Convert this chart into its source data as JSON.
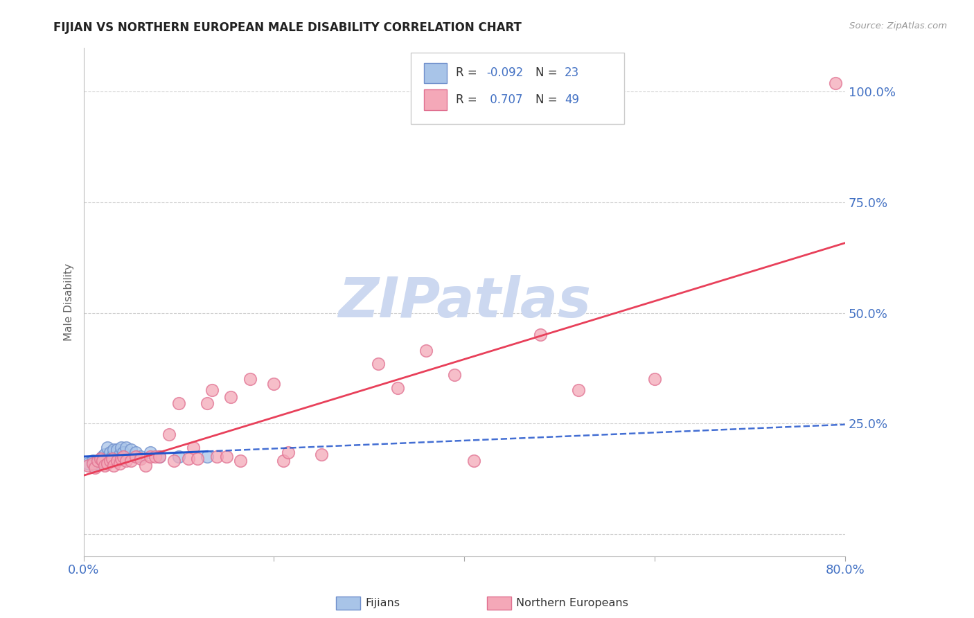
{
  "title": "FIJIAN VS NORTHERN EUROPEAN MALE DISABILITY CORRELATION CHART",
  "source": "Source: ZipAtlas.com",
  "tick_color": "#4472c4",
  "ylabel": "Male Disability",
  "xlim": [
    0.0,
    0.8
  ],
  "ylim": [
    -0.05,
    1.1
  ],
  "xticks": [
    0.0,
    0.2,
    0.4,
    0.6,
    0.8
  ],
  "xtick_labels": [
    "0.0%",
    "",
    "",
    "",
    "80.0%"
  ],
  "yticks": [
    0.0,
    0.25,
    0.5,
    0.75,
    1.0
  ],
  "ytick_labels": [
    "",
    "25.0%",
    "50.0%",
    "75.0%",
    "100.0%"
  ],
  "fijian_color": "#a8c4e8",
  "fijian_edge_color": "#7090cc",
  "northern_color": "#f4a8b8",
  "northern_edge_color": "#e07090",
  "fijian_line_color": "#2255cc",
  "northern_line_color": "#e8405a",
  "r_fijian": -0.092,
  "n_fijian": 23,
  "r_northern": 0.707,
  "n_northern": 49,
  "fijian_x": [
    0.005,
    0.01,
    0.012,
    0.015,
    0.018,
    0.02,
    0.022,
    0.025,
    0.028,
    0.03,
    0.032,
    0.035,
    0.038,
    0.04,
    0.042,
    0.045,
    0.05,
    0.055,
    0.06,
    0.07,
    0.08,
    0.1,
    0.13
  ],
  "fijian_y": [
    0.16,
    0.165,
    0.155,
    0.16,
    0.165,
    0.175,
    0.18,
    0.195,
    0.185,
    0.175,
    0.19,
    0.19,
    0.18,
    0.195,
    0.185,
    0.195,
    0.19,
    0.185,
    0.175,
    0.185,
    0.175,
    0.175,
    0.175
  ],
  "northern_x": [
    0.005,
    0.01,
    0.012,
    0.015,
    0.018,
    0.02,
    0.022,
    0.025,
    0.028,
    0.03,
    0.032,
    0.035,
    0.038,
    0.04,
    0.042,
    0.045,
    0.05,
    0.055,
    0.06,
    0.065,
    0.07,
    0.075,
    0.08,
    0.09,
    0.095,
    0.1,
    0.11,
    0.115,
    0.12,
    0.13,
    0.135,
    0.14,
    0.15,
    0.155,
    0.165,
    0.175,
    0.2,
    0.21,
    0.215,
    0.25,
    0.31,
    0.33,
    0.36,
    0.39,
    0.41,
    0.48,
    0.52,
    0.6,
    0.79
  ],
  "northern_y": [
    0.155,
    0.16,
    0.15,
    0.165,
    0.17,
    0.165,
    0.155,
    0.16,
    0.165,
    0.17,
    0.155,
    0.165,
    0.16,
    0.17,
    0.175,
    0.165,
    0.165,
    0.175,
    0.17,
    0.155,
    0.175,
    0.175,
    0.175,
    0.225,
    0.165,
    0.295,
    0.17,
    0.195,
    0.17,
    0.295,
    0.325,
    0.175,
    0.175,
    0.31,
    0.165,
    0.35,
    0.34,
    0.165,
    0.185,
    0.18,
    0.385,
    0.33,
    0.415,
    0.36,
    0.165,
    0.45,
    0.325,
    0.35,
    1.02
  ],
  "watermark_text": "ZIPatlas",
  "watermark_color": "#ccd8f0",
  "grid_color": "#cccccc",
  "background_color": "#ffffff",
  "legend_r_label": "R =",
  "legend_n_label": "N =",
  "fijian_label": "Fijians",
  "northern_label": "Northern Europeans"
}
